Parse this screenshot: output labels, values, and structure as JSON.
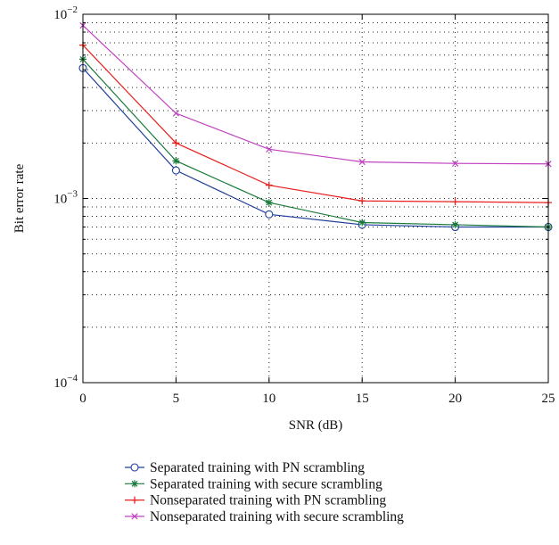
{
  "chart_data": {
    "type": "line",
    "x_scale": "linear",
    "y_scale": "log",
    "xlabel": "SNR (dB)",
    "ylabel": "Bit error rate",
    "xlim": [
      0,
      25
    ],
    "ylim": [
      0.0001,
      0.01
    ],
    "x_ticks": [
      0,
      5,
      10,
      15,
      20,
      25
    ],
    "y_ticks": [
      {
        "value": 0.0001,
        "base": "10",
        "exp": "−4"
      },
      {
        "value": 0.001,
        "base": "10",
        "exp": "−3"
      },
      {
        "value": 0.01,
        "base": "10",
        "exp": "−2"
      }
    ],
    "grid": true,
    "legend_position": "below plot",
    "series": [
      {
        "name": "Separated training with PN scrambling",
        "color": "#1f3f99",
        "marker": "circle",
        "x": [
          0,
          5,
          10,
          15,
          20,
          25
        ],
        "y": [
          0.0051,
          0.00142,
          0.00082,
          0.00072,
          0.0007,
          0.0007
        ]
      },
      {
        "name": "Separated training with secure scrambling",
        "color": "#1a7a3a",
        "marker": "asterisk",
        "x": [
          0,
          5,
          10,
          15,
          20,
          25
        ],
        "y": [
          0.0057,
          0.0016,
          0.00095,
          0.00074,
          0.00072,
          0.0007
        ]
      },
      {
        "name": "Nonseparated training with PN scrambling",
        "color": "#e8201f",
        "marker": "plus",
        "x": [
          0,
          5,
          10,
          15,
          20,
          25
        ],
        "y": [
          0.0068,
          0.002,
          0.00118,
          0.00097,
          0.00096,
          0.00095
        ]
      },
      {
        "name": "Nonseparated training with secure scrambling",
        "color": "#c040c0",
        "marker": "cross",
        "x": [
          0,
          5,
          10,
          15,
          20,
          25
        ],
        "y": [
          0.0087,
          0.0029,
          0.00185,
          0.00158,
          0.00155,
          0.00154
        ]
      }
    ]
  }
}
